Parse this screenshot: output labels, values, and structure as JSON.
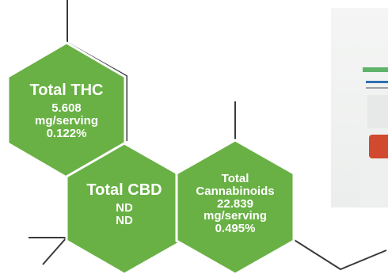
{
  "colors": {
    "hex_fill": "#69b145",
    "hex_stroke": "#ffffff",
    "line": "#3a3a3a"
  },
  "hexagons": {
    "thc": {
      "title": "Total THC",
      "lines": [
        "5.608",
        "mg/serving",
        "0.122%"
      ]
    },
    "cbd": {
      "title": "Total CBD",
      "lines": [
        "ND",
        "ND"
      ]
    },
    "cannabinoids": {
      "title_lines": [
        "Total",
        "Cannabinoids"
      ],
      "lines": [
        "22.839",
        "mg/serving",
        "0.495%"
      ]
    }
  }
}
